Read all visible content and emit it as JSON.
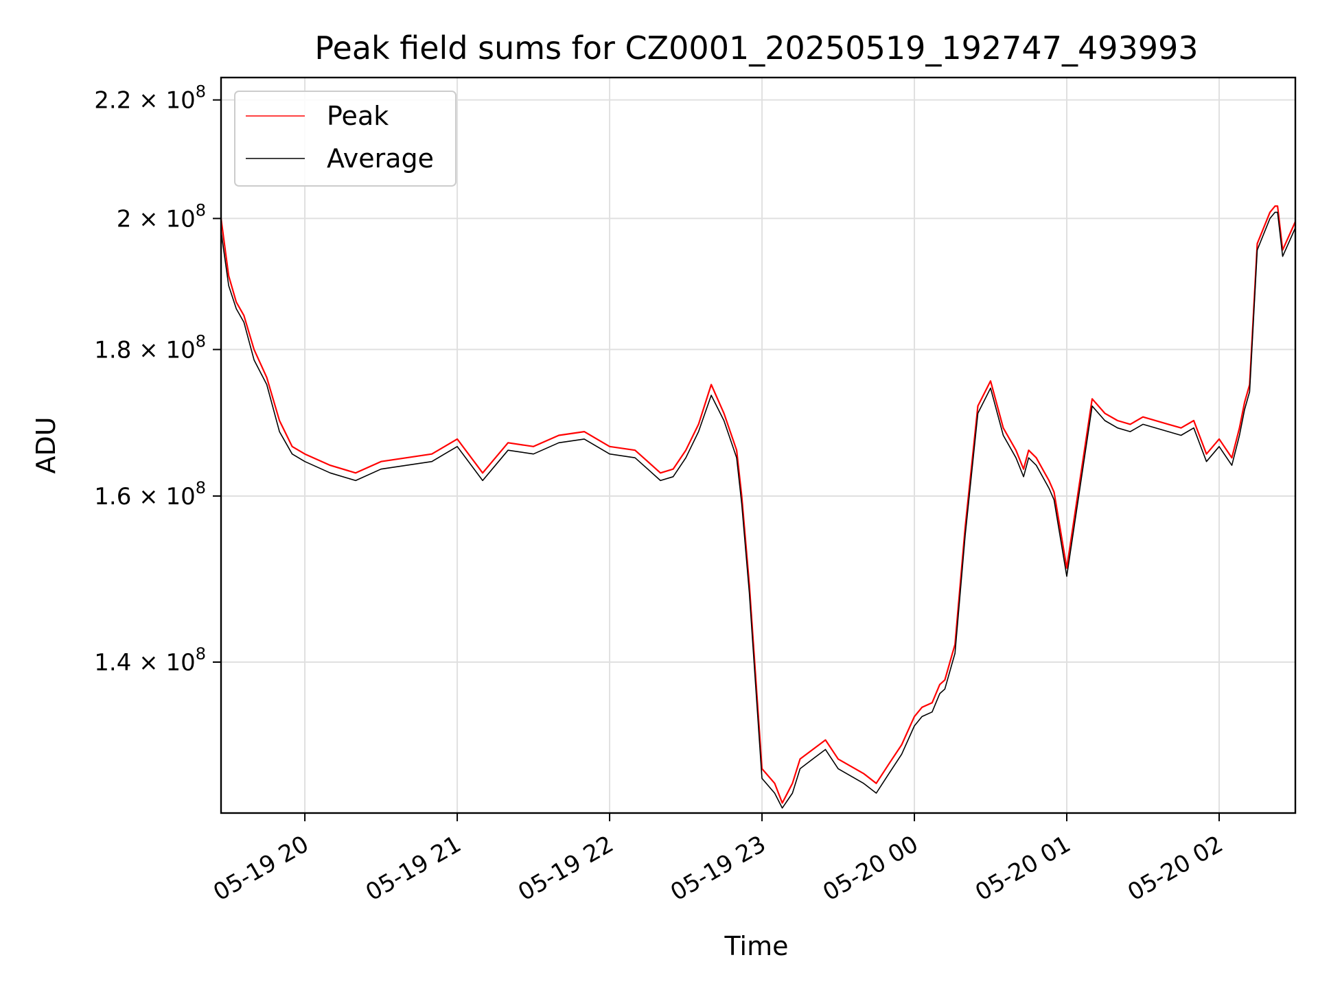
{
  "chart_data": {
    "type": "line",
    "title": "Peak field sums for CZ0001_20250519_192747_493993",
    "xlabel": "Time",
    "ylabel": "ADU",
    "y_scale": "log",
    "grid": true,
    "legend_placement": "top-left",
    "xlim": [
      "2025-05-19 19:27",
      "2025-05-20 02:30"
    ],
    "ylim": [
      124000000,
      224000000
    ],
    "x_ticks": [
      {
        "value": "2025-05-19 20:00",
        "label": "05-19 20"
      },
      {
        "value": "2025-05-19 21:00",
        "label": "05-19 21"
      },
      {
        "value": "2025-05-19 22:00",
        "label": "05-19 22"
      },
      {
        "value": "2025-05-19 23:00",
        "label": "05-19 23"
      },
      {
        "value": "2025-05-20 00:00",
        "label": "05-20 00"
      },
      {
        "value": "2025-05-20 01:00",
        "label": "05-20 01"
      },
      {
        "value": "2025-05-20 02:00",
        "label": "05-20 02"
      }
    ],
    "y_ticks": [
      {
        "value": 140000000,
        "mantissa": "1.4",
        "exp": "8"
      },
      {
        "value": 160000000,
        "mantissa": "1.6",
        "exp": "8"
      },
      {
        "value": 180000000,
        "mantissa": "1.8",
        "exp": "8"
      },
      {
        "value": 200000000,
        "mantissa": "2",
        "exp": "8"
      },
      {
        "value": 220000000,
        "mantissa": "2.2",
        "exp": "8"
      }
    ],
    "x": [
      "2025-05-19 19:27",
      "2025-05-19 19:30",
      "2025-05-19 19:33",
      "2025-05-19 19:36",
      "2025-05-19 19:40",
      "2025-05-19 19:45",
      "2025-05-19 19:50",
      "2025-05-19 19:55",
      "2025-05-19 20:00",
      "2025-05-19 20:10",
      "2025-05-19 20:20",
      "2025-05-19 20:30",
      "2025-05-19 20:40",
      "2025-05-19 20:50",
      "2025-05-19 20:55",
      "2025-05-19 21:00",
      "2025-05-19 21:10",
      "2025-05-19 21:20",
      "2025-05-19 21:30",
      "2025-05-19 21:40",
      "2025-05-19 21:50",
      "2025-05-19 22:00",
      "2025-05-19 22:10",
      "2025-05-19 22:15",
      "2025-05-19 22:20",
      "2025-05-19 22:25",
      "2025-05-19 22:30",
      "2025-05-19 22:35",
      "2025-05-19 22:40",
      "2025-05-19 22:45",
      "2025-05-19 22:50",
      "2025-05-19 22:52",
      "2025-05-19 22:55",
      "2025-05-19 23:00",
      "2025-05-19 23:05",
      "2025-05-19 23:08",
      "2025-05-19 23:12",
      "2025-05-19 23:15",
      "2025-05-19 23:20",
      "2025-05-19 23:25",
      "2025-05-19 23:30",
      "2025-05-19 23:40",
      "2025-05-19 23:45",
      "2025-05-19 23:50",
      "2025-05-19 23:55",
      "2025-05-20 00:00",
      "2025-05-20 00:03",
      "2025-05-20 00:07",
      "2025-05-20 00:10",
      "2025-05-20 00:12",
      "2025-05-20 00:15",
      "2025-05-20 00:16",
      "2025-05-20 00:20",
      "2025-05-20 00:25",
      "2025-05-20 00:30",
      "2025-05-20 00:35",
      "2025-05-20 00:40",
      "2025-05-20 00:43",
      "2025-05-20 00:45",
      "2025-05-20 00:48",
      "2025-05-20 00:53",
      "2025-05-20 00:55",
      "2025-05-20 01:00",
      "2025-05-20 01:10",
      "2025-05-20 01:15",
      "2025-05-20 01:20",
      "2025-05-20 01:25",
      "2025-05-20 01:30",
      "2025-05-20 01:40",
      "2025-05-20 01:45",
      "2025-05-20 01:50",
      "2025-05-20 01:55",
      "2025-05-20 02:00",
      "2025-05-20 02:05",
      "2025-05-20 02:08",
      "2025-05-20 02:10",
      "2025-05-20 02:12",
      "2025-05-20 02:15",
      "2025-05-20 02:20",
      "2025-05-20 02:22",
      "2025-05-20 02:23",
      "2025-05-20 02:25",
      "2025-05-20 02:30"
    ],
    "series": [
      {
        "name": "Peak",
        "color": "#ff0000",
        "values": [
          200000000,
          191000000,
          187000000,
          185000000,
          180000000,
          176000000,
          170000000,
          166500000,
          165500000,
          164000000,
          163000000,
          164500000,
          165000000,
          165500000,
          166500000,
          167500000,
          163000000,
          167000000,
          166500000,
          168000000,
          168500000,
          166500000,
          166000000,
          164500000,
          163000000,
          163500000,
          166000000,
          169500000,
          175000000,
          171000000,
          166000000,
          160000000,
          149000000,
          128500000,
          127000000,
          125000000,
          127000000,
          129500000,
          130500000,
          131500000,
          129500000,
          128000000,
          127000000,
          129000000,
          131000000,
          134000000,
          135000000,
          135500000,
          137500000,
          138000000,
          141000000,
          142000000,
          156000000,
          172000000,
          175500000,
          169000000,
          166000000,
          163500000,
          166000000,
          165000000,
          162000000,
          160500000,
          151000000,
          173000000,
          171000000,
          170000000,
          169500000,
          170500000,
          169500000,
          169000000,
          170000000,
          165500000,
          167500000,
          165000000,
          169000000,
          172500000,
          175000000,
          196000000,
          201000000,
          202000000,
          202000000,
          195000000,
          199500000
        ]
      },
      {
        "name": "Average",
        "color": "#000000",
        "values": [
          198000000,
          189500000,
          186000000,
          184000000,
          178500000,
          175000000,
          168500000,
          165500000,
          164500000,
          163000000,
          162000000,
          163500000,
          164000000,
          164500000,
          165500000,
          166500000,
          162000000,
          166000000,
          165500000,
          167000000,
          167500000,
          165500000,
          165000000,
          163500000,
          162000000,
          162500000,
          165000000,
          168500000,
          173500000,
          170000000,
          165000000,
          159000000,
          148000000,
          127500000,
          126000000,
          124500000,
          126000000,
          128500000,
          129500000,
          130500000,
          128500000,
          127000000,
          126000000,
          128000000,
          130000000,
          133000000,
          134000000,
          134500000,
          136500000,
          137000000,
          140000000,
          141000000,
          155000000,
          171000000,
          174500000,
          168000000,
          165000000,
          162500000,
          165000000,
          164000000,
          161000000,
          159500000,
          150000000,
          172000000,
          170000000,
          169000000,
          168500000,
          169500000,
          168500000,
          168000000,
          169000000,
          164500000,
          166500000,
          164000000,
          168000000,
          171500000,
          174000000,
          195000000,
          200000000,
          201000000,
          201000000,
          194000000,
          198500000
        ]
      }
    ]
  }
}
